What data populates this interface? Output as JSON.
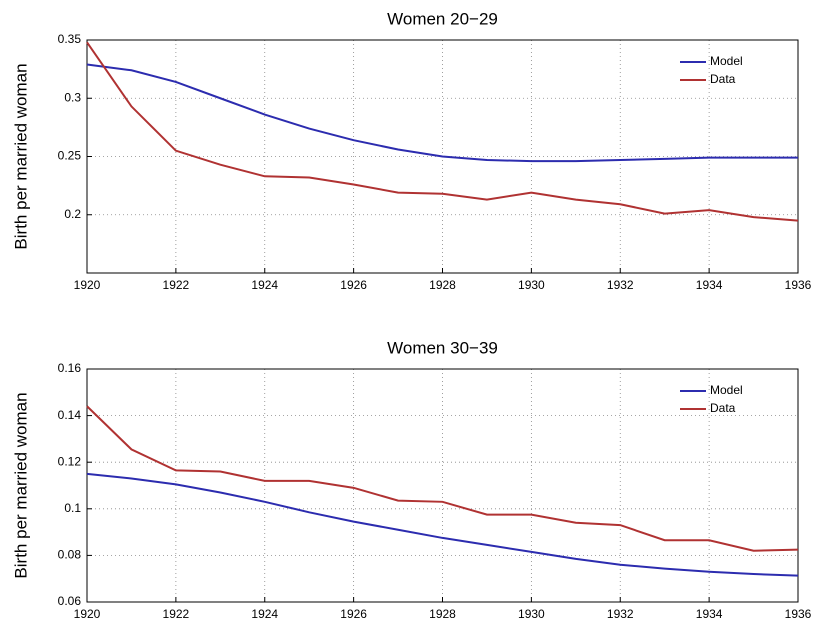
{
  "chart_data": [
    {
      "type": "line",
      "title": "Women 20−29",
      "y_label": "Birth per married woman",
      "x": [
        1920,
        1921,
        1922,
        1923,
        1924,
        1925,
        1926,
        1927,
        1928,
        1929,
        1930,
        1931,
        1932,
        1933,
        1934,
        1935,
        1936
      ],
      "series": [
        {
          "name": "Model",
          "color": "#2c2caf",
          "values": [
            0.329,
            0.324,
            0.314,
            0.3,
            0.286,
            0.274,
            0.264,
            0.256,
            0.25,
            0.247,
            0.246,
            0.246,
            0.247,
            0.248,
            0.249,
            0.249,
            0.249
          ]
        },
        {
          "name": "Data",
          "color": "#b03232",
          "values": [
            0.348,
            0.293,
            0.255,
            0.243,
            0.233,
            0.232,
            0.226,
            0.219,
            0.218,
            0.213,
            0.219,
            0.213,
            0.209,
            0.201,
            0.204,
            0.198,
            0.195
          ]
        }
      ],
      "xlim": [
        1920,
        1936
      ],
      "xticks": [
        1920,
        1922,
        1924,
        1926,
        1928,
        1930,
        1932,
        1934,
        1936
      ],
      "ylim": [
        0.15,
        0.35
      ],
      "yticks": [
        0.2,
        0.25,
        0.3,
        0.35
      ],
      "grid": true,
      "legend": "upper right"
    },
    {
      "type": "line",
      "title": "Women 30−39",
      "y_label": "Birth per married woman",
      "x": [
        1920,
        1921,
        1922,
        1923,
        1924,
        1925,
        1926,
        1927,
        1928,
        1929,
        1930,
        1931,
        1932,
        1933,
        1934,
        1935,
        1936
      ],
      "series": [
        {
          "name": "Model",
          "color": "#2c2caf",
          "values": [
            0.115,
            0.113,
            0.1105,
            0.107,
            0.103,
            0.0985,
            0.0945,
            0.091,
            0.0875,
            0.0845,
            0.0815,
            0.0785,
            0.076,
            0.0743,
            0.073,
            0.072,
            0.0713
          ]
        },
        {
          "name": "Data",
          "color": "#b03232",
          "values": [
            0.144,
            0.1255,
            0.1165,
            0.116,
            0.112,
            0.112,
            0.109,
            0.1035,
            0.103,
            0.0975,
            0.0975,
            0.094,
            0.093,
            0.0865,
            0.0865,
            0.082,
            0.0825
          ]
        }
      ],
      "xlim": [
        1920,
        1936
      ],
      "xticks": [
        1920,
        1922,
        1924,
        1926,
        1928,
        1930,
        1932,
        1934,
        1936
      ],
      "ylim": [
        0.06,
        0.16
      ],
      "yticks": [
        0.06,
        0.08,
        0.1,
        0.12,
        0.14,
        0.16
      ],
      "grid": true,
      "legend": "upper right"
    }
  ]
}
